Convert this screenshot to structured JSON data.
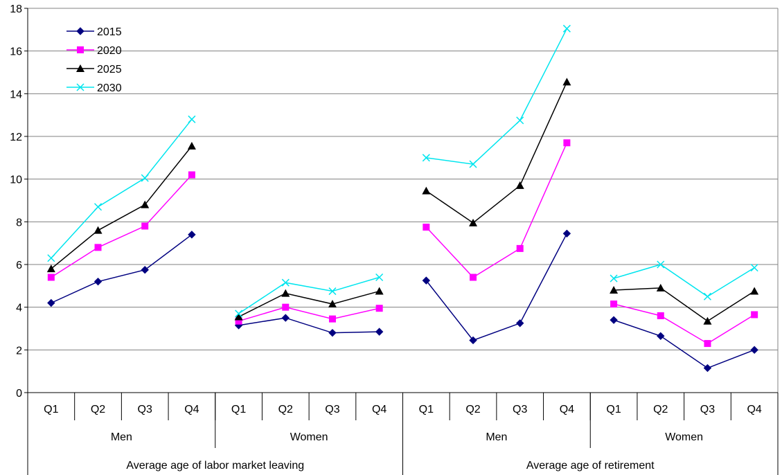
{
  "chart_data": {
    "type": "line",
    "ylim": [
      0,
      18
    ],
    "yticks": [
      0,
      2,
      4,
      6,
      8,
      10,
      12,
      14,
      16,
      18
    ],
    "grid": true,
    "legend_position": "top-left",
    "categories": [
      "Q1",
      "Q2",
      "Q3",
      "Q4",
      "Q1",
      "Q2",
      "Q3",
      "Q4",
      "Q1",
      "Q2",
      "Q3",
      "Q4",
      "Q1",
      "Q2",
      "Q3",
      "Q4"
    ],
    "group_level2": [
      {
        "label": "Men",
        "span": 4
      },
      {
        "label": "Women",
        "span": 4
      },
      {
        "label": "Men",
        "span": 4
      },
      {
        "label": "Women",
        "span": 4
      }
    ],
    "group_level1": [
      {
        "label": "Average age of labor market leaving",
        "span": 8
      },
      {
        "label": "Average age of retirement",
        "span": 8
      }
    ],
    "segments": [
      [
        0,
        3
      ],
      [
        4,
        7
      ],
      [
        8,
        11
      ],
      [
        12,
        15
      ]
    ],
    "series": [
      {
        "name": "2015",
        "color": "#000080",
        "marker": "diamond",
        "values": [
          4.2,
          5.2,
          5.75,
          7.4,
          3.15,
          3.5,
          2.8,
          2.85,
          5.25,
          2.45,
          3.25,
          7.45,
          3.4,
          2.65,
          1.15,
          2.0
        ]
      },
      {
        "name": "2020",
        "color": "#FF00FF",
        "marker": "square",
        "values": [
          5.4,
          6.8,
          7.8,
          10.2,
          3.35,
          4.0,
          3.45,
          3.95,
          7.75,
          5.4,
          6.75,
          11.7,
          4.15,
          3.6,
          2.3,
          3.65
        ]
      },
      {
        "name": "2025",
        "color": "#000000",
        "marker": "triangle",
        "values": [
          5.8,
          7.6,
          8.8,
          11.55,
          3.55,
          4.65,
          4.15,
          4.75,
          9.45,
          7.95,
          9.7,
          14.55,
          4.8,
          4.9,
          3.35,
          4.75
        ]
      },
      {
        "name": "2030",
        "color": "#00E5EE",
        "marker": "x",
        "values": [
          6.3,
          8.7,
          10.05,
          12.8,
          3.7,
          5.15,
          4.75,
          5.4,
          11.0,
          10.7,
          12.75,
          17.05,
          5.35,
          6.0,
          4.5,
          5.85
        ]
      }
    ]
  }
}
